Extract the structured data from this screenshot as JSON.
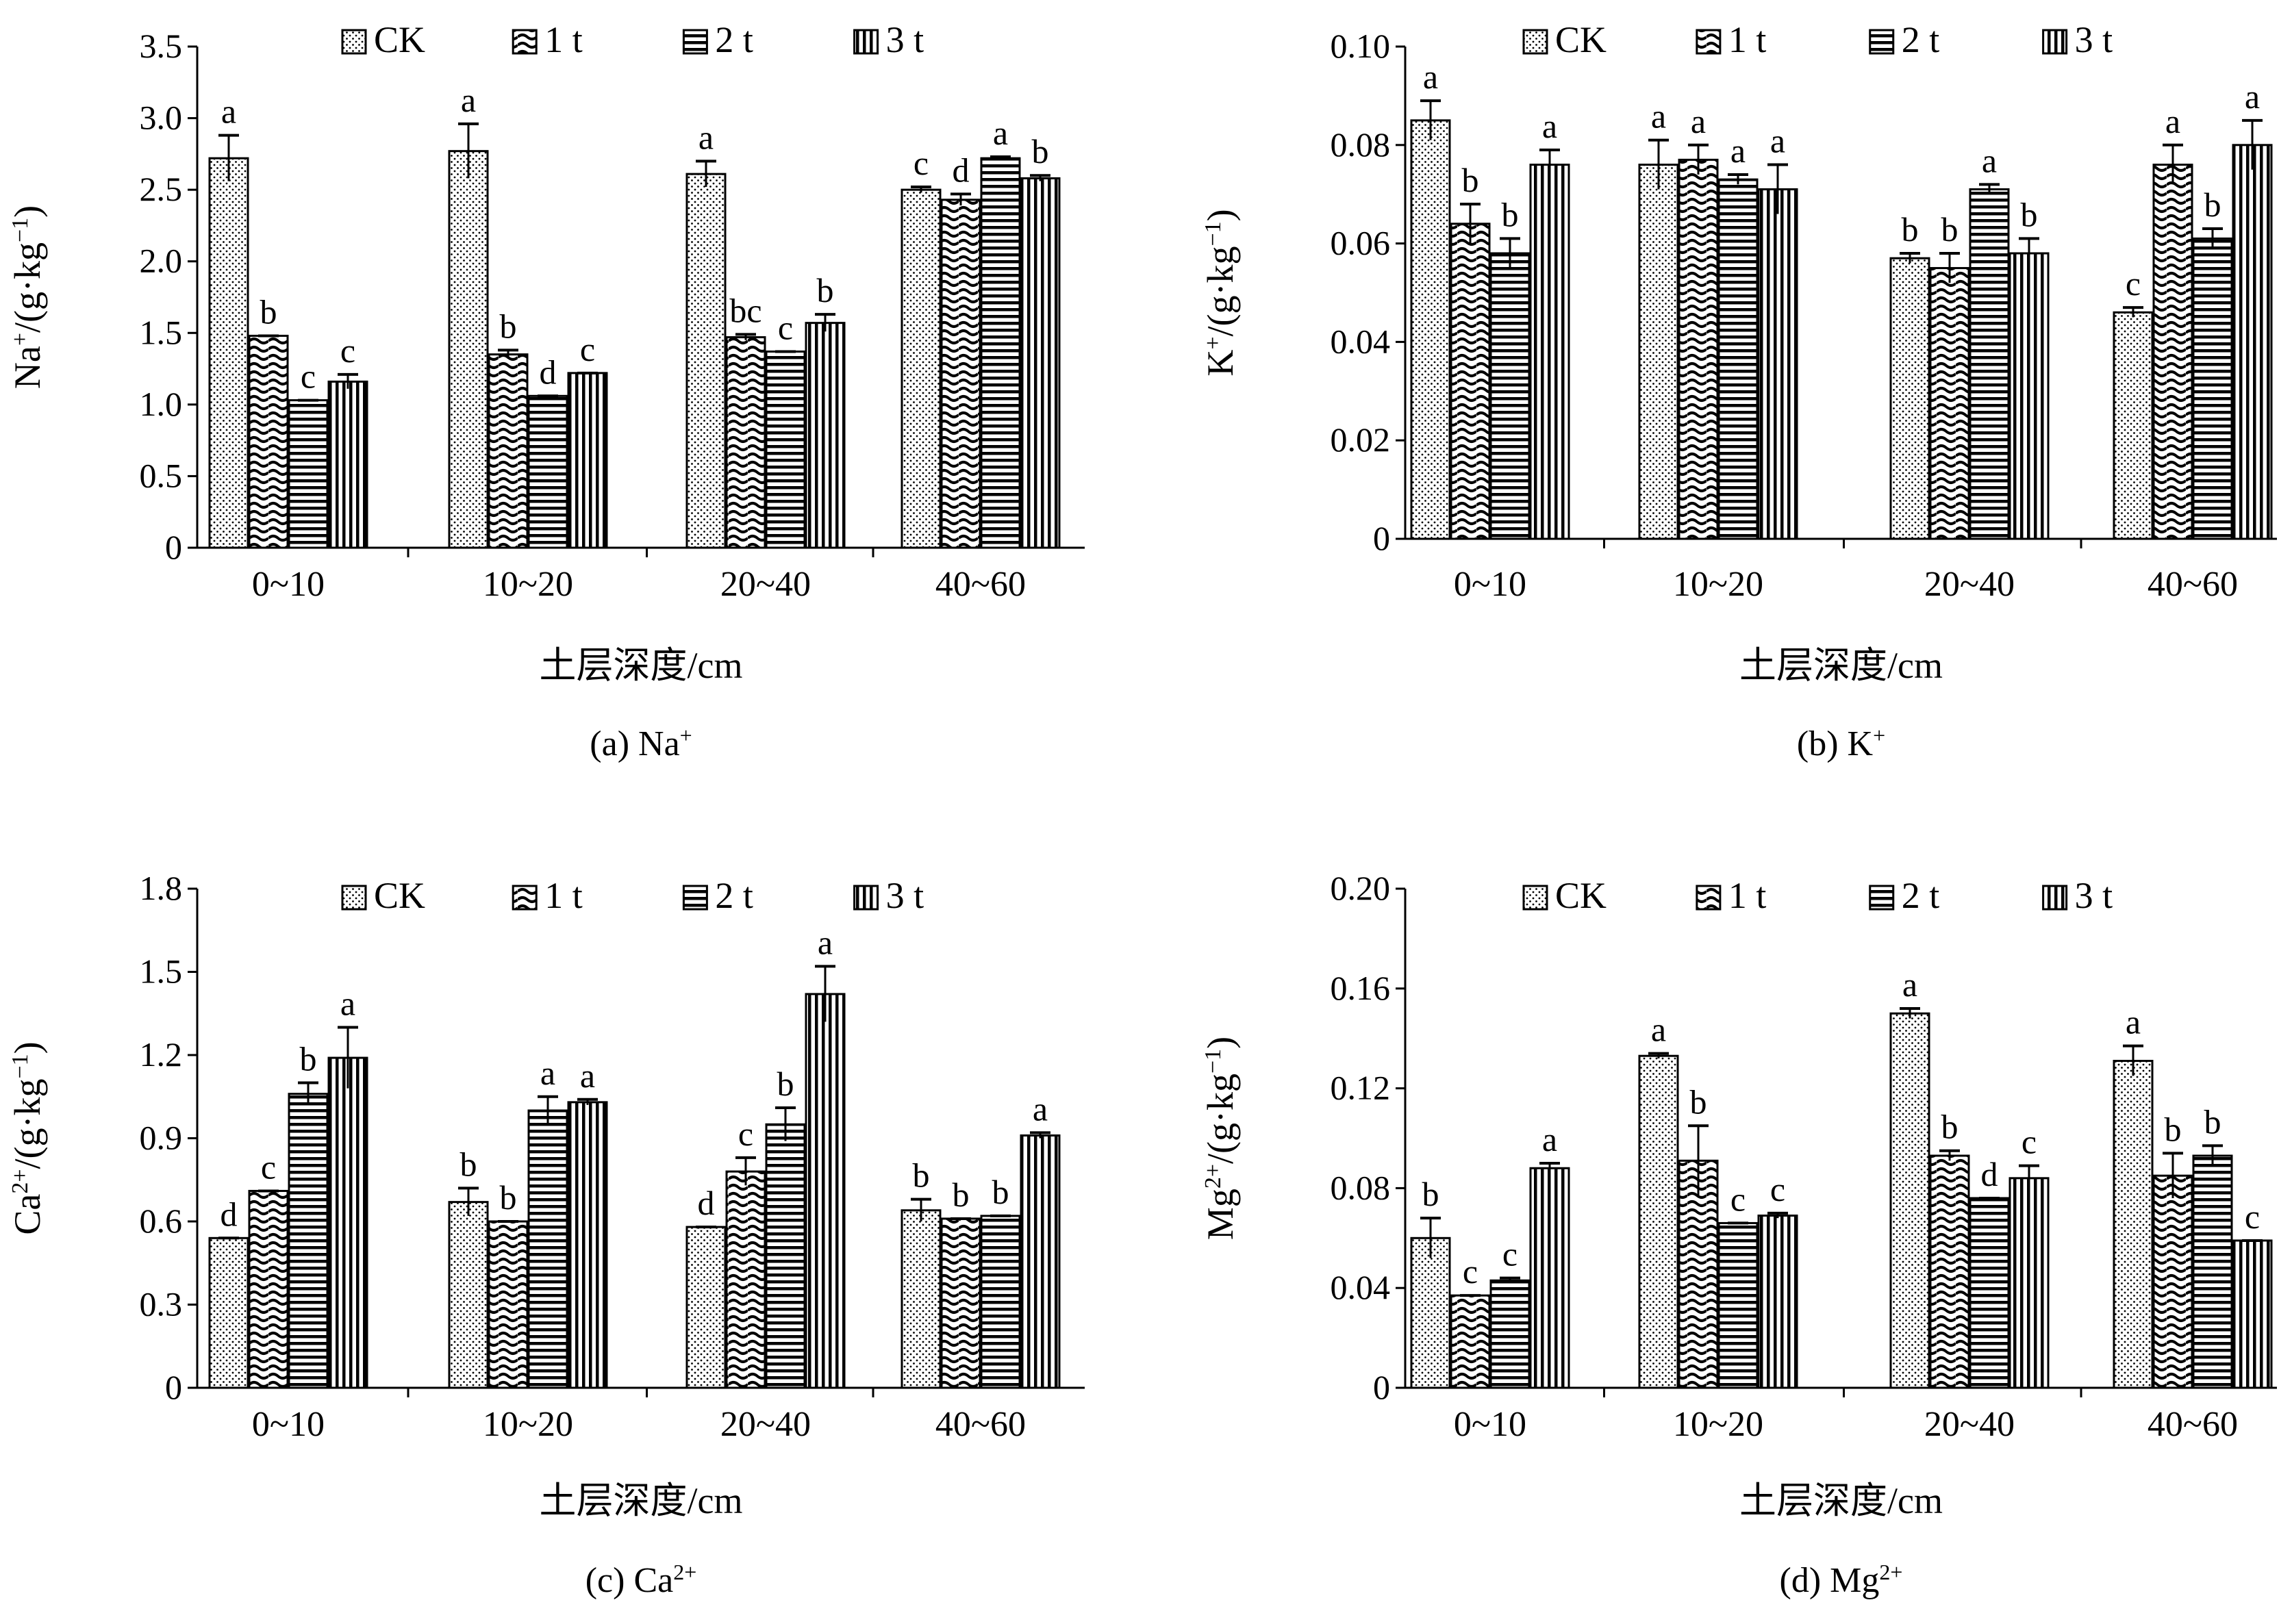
{
  "figure": {
    "panels": [
      {
        "caption_label": "(a)",
        "caption_ion": "Na",
        "caption_sup": "+"
      },
      {
        "caption_label": "(b)",
        "caption_ion": "K",
        "caption_sup": "+"
      },
      {
        "caption_label": "(c)",
        "caption_ion": "Ca",
        "caption_sup": "2+"
      },
      {
        "caption_label": "(d)",
        "caption_ion": "Mg",
        "caption_sup": "2+"
      }
    ],
    "ylabel_unit": "/(g·kg",
    "ylabel_unit_sup": "−1",
    "ylabel_close": ")"
  },
  "chart_data": [
    {
      "type": "bar",
      "title": "(a) Na+",
      "xlabel": "土层深度/cm",
      "ylabel": "Na+/(g·kg−1)",
      "categories": [
        "0~10",
        "10~20",
        "20~40",
        "40~60"
      ],
      "ylim": [
        0,
        3.5
      ],
      "yticks": [
        "0",
        "0.5",
        "1.0",
        "1.5",
        "2.0",
        "2.5",
        "3.0",
        "3.5"
      ],
      "legend": [
        "CK",
        "1 t",
        "2 t",
        "3 t"
      ],
      "series": [
        {
          "name": "CK",
          "values": [
            2.72,
            2.77,
            2.61,
            2.5
          ],
          "errors": [
            0.16,
            0.19,
            0.09,
            0.02
          ],
          "letters": [
            "a",
            "a",
            "a",
            "c"
          ]
        },
        {
          "name": "1 t",
          "values": [
            1.48,
            1.35,
            1.47,
            2.43
          ],
          "errors": [
            0.0,
            0.03,
            0.02,
            0.04
          ],
          "letters": [
            "b",
            "b",
            "bc",
            "d"
          ]
        },
        {
          "name": "2 t",
          "values": [
            1.03,
            1.06,
            1.37,
            2.72
          ],
          "errors": [
            0.0,
            0.0,
            0.0,
            0.01
          ],
          "letters": [
            "c",
            "d",
            "c",
            "a"
          ]
        },
        {
          "name": "3 t",
          "values": [
            1.16,
            1.22,
            1.57,
            2.58
          ],
          "errors": [
            0.05,
            0.0,
            0.06,
            0.02
          ],
          "letters": [
            "c",
            "c",
            "b",
            "b"
          ]
        }
      ]
    },
    {
      "type": "bar",
      "title": "(b) K+",
      "xlabel": "土层深度/cm",
      "ylabel": "K+/(g·kg−1)",
      "categories": [
        "0~10",
        "10~20",
        "20~40",
        "40~60"
      ],
      "ylim": [
        0,
        0.1
      ],
      "yticks": [
        "0",
        "0.02",
        "0.04",
        "0.06",
        "0.08",
        "0.10"
      ],
      "legend": [
        "CK",
        "1 t",
        "2 t",
        "3 t"
      ],
      "series": [
        {
          "name": "CK",
          "values": [
            0.085,
            0.076,
            0.057,
            0.046
          ],
          "errors": [
            0.004,
            0.005,
            0.001,
            0.001
          ],
          "letters": [
            "a",
            "a",
            "b",
            "c"
          ]
        },
        {
          "name": "1 t",
          "values": [
            0.064,
            0.077,
            0.055,
            0.076
          ],
          "errors": [
            0.004,
            0.003,
            0.003,
            0.004
          ],
          "letters": [
            "b",
            "a",
            "b",
            "a"
          ]
        },
        {
          "name": "2 t",
          "values": [
            0.058,
            0.073,
            0.071,
            0.061
          ],
          "errors": [
            0.003,
            0.001,
            0.001,
            0.002
          ],
          "letters": [
            "b",
            "a",
            "a",
            "b"
          ]
        },
        {
          "name": "3 t",
          "values": [
            0.076,
            0.071,
            0.058,
            0.08
          ],
          "errors": [
            0.003,
            0.005,
            0.003,
            0.005
          ],
          "letters": [
            "a",
            "a",
            "b",
            "a"
          ]
        }
      ]
    },
    {
      "type": "bar",
      "title": "(c) Ca2+",
      "xlabel": "土层深度/cm",
      "ylabel": "Ca2+/(g·kg−1)",
      "categories": [
        "0~10",
        "10~20",
        "20~40",
        "40~60"
      ],
      "ylim": [
        0,
        1.8
      ],
      "yticks": [
        "0",
        "0.3",
        "0.6",
        "0.9",
        "1.2",
        "1.5",
        "1.8"
      ],
      "legend": [
        "CK",
        "1 t",
        "2 t",
        "3 t"
      ],
      "series": [
        {
          "name": "CK",
          "values": [
            0.54,
            0.67,
            0.58,
            0.64
          ],
          "errors": [
            0.0,
            0.05,
            0.0,
            0.04
          ],
          "letters": [
            "d",
            "b",
            "d",
            "b"
          ]
        },
        {
          "name": "1 t",
          "values": [
            0.71,
            0.6,
            0.78,
            0.61
          ],
          "errors": [
            0.0,
            0.0,
            0.05,
            0.0
          ],
          "letters": [
            "c",
            "b",
            "c",
            "b"
          ]
        },
        {
          "name": "2 t",
          "values": [
            1.06,
            1.0,
            0.95,
            0.62
          ],
          "errors": [
            0.04,
            0.05,
            0.06,
            0.0
          ],
          "letters": [
            "b",
            "a",
            "b",
            "b"
          ]
        },
        {
          "name": "3 t",
          "values": [
            1.19,
            1.03,
            1.42,
            0.91
          ],
          "errors": [
            0.11,
            0.01,
            0.1,
            0.01
          ],
          "letters": [
            "a",
            "a",
            "a",
            "a"
          ]
        }
      ]
    },
    {
      "type": "bar",
      "title": "(d) Mg2+",
      "xlabel": "土层深度/cm",
      "ylabel": "Mg2+/(g·kg−1)",
      "categories": [
        "0~10",
        "10~20",
        "20~40",
        "40~60"
      ],
      "ylim": [
        0,
        0.2
      ],
      "yticks": [
        "0",
        "0.04",
        "0.08",
        "0.12",
        "0.16",
        "0.20"
      ],
      "legend": [
        "CK",
        "1 t",
        "2 t",
        "3 t"
      ],
      "series": [
        {
          "name": "CK",
          "values": [
            0.06,
            0.133,
            0.15,
            0.131
          ],
          "errors": [
            0.008,
            0.001,
            0.002,
            0.006
          ],
          "letters": [
            "b",
            "a",
            "a",
            "a"
          ]
        },
        {
          "name": "1 t",
          "values": [
            0.037,
            0.091,
            0.093,
            0.085
          ],
          "errors": [
            0.0,
            0.014,
            0.002,
            0.009
          ],
          "letters": [
            "c",
            "b",
            "b",
            "b"
          ]
        },
        {
          "name": "2 t",
          "values": [
            0.043,
            0.066,
            0.076,
            0.093
          ],
          "errors": [
            0.001,
            0.0,
            0.0,
            0.004
          ],
          "letters": [
            "c",
            "c",
            "d",
            "b"
          ]
        },
        {
          "name": "3 t",
          "values": [
            0.088,
            0.069,
            0.084,
            0.059
          ],
          "errors": [
            0.002,
            0.001,
            0.005,
            0.0
          ],
          "letters": [
            "a",
            "c",
            "c",
            "c"
          ]
        }
      ]
    }
  ]
}
